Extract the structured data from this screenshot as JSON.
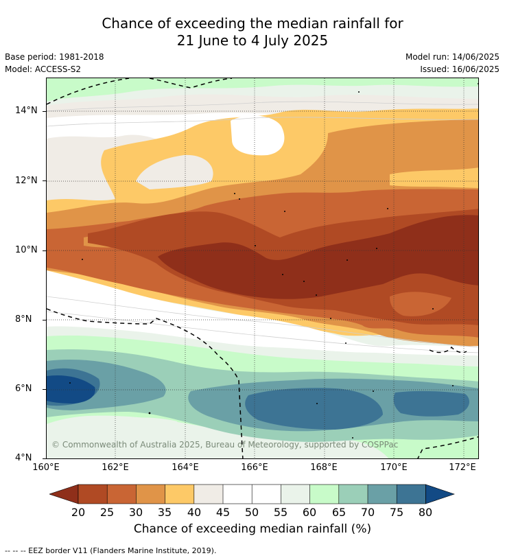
{
  "title": {
    "line1": "Chance of exceeding the median rainfall for",
    "line2": "21 June to 4 July 2025"
  },
  "meta_left": {
    "base_period": "Base period: 1981-2018",
    "model": "Model: ACCESS-S2"
  },
  "meta_right": {
    "model_run": "Model run: 14/06/2025",
    "issued": "Issued: 16/06/2025"
  },
  "map": {
    "lat_labels": [
      "14°N",
      "12°N",
      "10°N",
      "8°N",
      "6°N",
      "4°N"
    ],
    "lon_labels": [
      "160°E",
      "162°E",
      "164°E",
      "166°E",
      "168°E",
      "170°E",
      "172°E"
    ],
    "copyright": "© Commonwealth of Australia 2025, Bureau of Meteorology, supported by COSPPac"
  },
  "colorbar": {
    "levels": [
      "20",
      "25",
      "30",
      "35",
      "40",
      "45",
      "50",
      "55",
      "60",
      "65",
      "70",
      "75",
      "80"
    ],
    "colors": [
      "#8f2f1a",
      "#b04a24",
      "#c96534",
      "#e09448",
      "#fdc967",
      "#f0ece6",
      "#ffffff",
      "#ffffff",
      "#eaf3ea",
      "#c8fbc9",
      "#9bcfb8",
      "#6aa0a6",
      "#3d7494",
      "#124a85"
    ],
    "title": "Chance of exceeding median rainfall (%)"
  },
  "footnote": "--  --  -- EEZ border V11 (Flanders Marine Institute, 2019)."
}
